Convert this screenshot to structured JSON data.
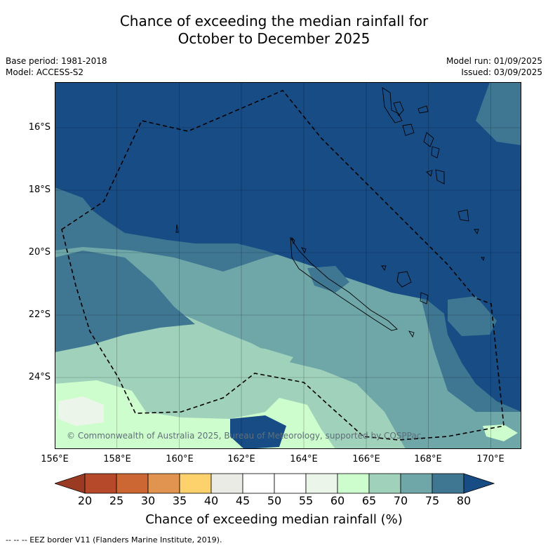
{
  "title_line1": "Chance of exceeding the median rainfall for",
  "title_line2": "October to December 2025",
  "base_period": "Base period: 1981-2018",
  "model": "Model: ACCESS-S2",
  "model_run": "Model run: 01/09/2025",
  "issued": "Issued: 03/09/2025",
  "lat_labels": [
    "16°S",
    "18°S",
    "20°S",
    "22°S",
    "24°S"
  ],
  "lon_labels": [
    "156°E",
    "158°E",
    "160°E",
    "162°E",
    "164°E",
    "166°E",
    "168°E",
    "170°E"
  ],
  "copyright": "© Commonwealth of Australia 2025, Bureau of Meteorology, supported by COSPPac",
  "colorbar": {
    "ticks": [
      "20",
      "25",
      "30",
      "35",
      "40",
      "45",
      "50",
      "55",
      "60",
      "65",
      "70",
      "75",
      "80"
    ],
    "label": "Chance of exceeding median rainfall (%)",
    "colors": [
      "#b5492a",
      "#cc6633",
      "#e09450",
      "#fdd16c",
      "#ebebe6",
      "#ffffff",
      "#ffffff",
      "#ebf5e9",
      "#cdfdcc",
      "#9fd1bb",
      "#6fa6a8",
      "#3f7793"
    ],
    "under_color": "#9b3a22",
    "over_color": "#174c85"
  },
  "footnote": "-- -- -- EEZ border V11 (Flanders Marine Institute, 2019)."
}
